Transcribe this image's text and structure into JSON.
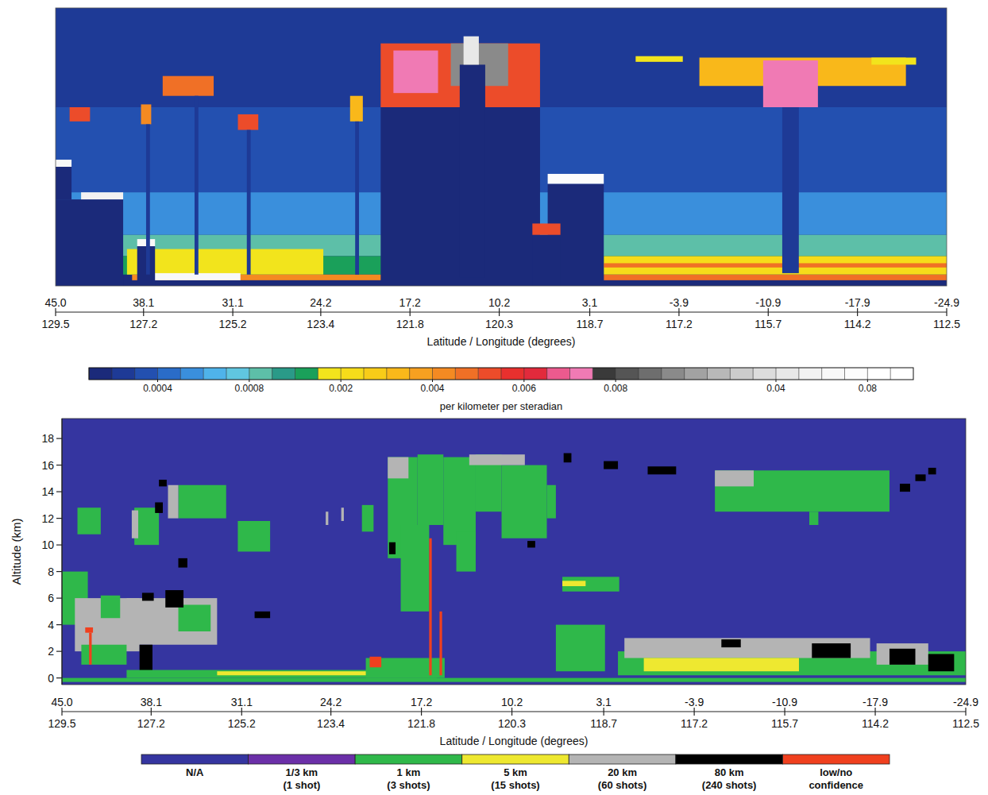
{
  "chart_data": [
    {
      "type": "heatmap",
      "xlim": [
        45.0,
        -24.9
      ],
      "xticks": [
        {
          "value": 45.0,
          "label": "45.0"
        },
        38.1,
        31.1,
        24.2,
        17.2,
        10.2,
        3.1,
        -3.9,
        -10.9,
        -17.9,
        -24.9
      ],
      "lon_ticks": [
        129.5,
        127.2,
        125.2,
        123.4,
        121.8,
        120.3,
        118.7,
        117.2,
        115.7,
        114.2,
        112.5
      ],
      "xlabel": "Latitude / Longitude (degrees)",
      "ylim": [
        -0.6,
        19
      ],
      "tick_labels": "x",
      "cells": [
        [
          45.0,
          -24.9,
          12.0,
          19.0,
          0.00025
        ],
        [
          45.0,
          -24.9,
          6.0,
          12.0,
          0.00035
        ],
        [
          45.0,
          -24.9,
          3.0,
          6.0,
          0.00055
        ],
        [
          45.0,
          -24.9,
          1.5,
          3.0,
          0.00085
        ],
        [
          45.0,
          -24.9,
          0.2,
          1.5,
          0.0012
        ],
        [
          39.4,
          24.0,
          0.2,
          2.0,
          0.0018
        ],
        [
          2.0,
          -24.9,
          0.2,
          1.5,
          0.0022
        ],
        [
          45.0,
          -24.9,
          -0.6,
          -0.2,
          0.00015
        ],
        [
          39.0,
          2.0,
          -0.2,
          0.2,
          0.004
        ],
        [
          37.5,
          30.5,
          -0.2,
          0.3,
          0.06
        ],
        [
          2.0,
          -24.9,
          -0.2,
          0.2,
          0.0045
        ],
        [
          2.0,
          -24.9,
          0.7,
          1.0,
          0.0045
        ],
        [
          45.0,
          39.7,
          -0.6,
          5.5,
          0.00012
        ],
        [
          45.0,
          43.75,
          5.5,
          7.8,
          0.00012
        ],
        [
          45.0,
          43.75,
          7.8,
          8.3,
          0.06
        ],
        [
          43.0,
          39.7,
          5.5,
          6.0,
          0.05
        ],
        [
          38.6,
          37.2,
          -0.6,
          2.2,
          0.00012
        ],
        [
          38.6,
          37.2,
          2.2,
          2.7,
          0.06
        ],
        [
          43.9,
          42.3,
          11.0,
          12.0,
          0.005
        ],
        [
          38.3,
          37.5,
          10.8,
          12.2,
          0.004
        ],
        [
          36.6,
          32.6,
          12.8,
          14.2,
          0.0045
        ],
        [
          30.7,
          29.1,
          10.4,
          11.5,
          0.005
        ],
        [
          21.9,
          20.9,
          11.0,
          12.8,
          0.003
        ],
        [
          37.9,
          37.6,
          0.2,
          10.8,
          0.0002
        ],
        [
          34.1,
          33.8,
          0.2,
          12.8,
          0.0002
        ],
        [
          30.0,
          29.7,
          0.2,
          10.4,
          0.0002
        ],
        [
          21.5,
          21.2,
          0.2,
          11.0,
          0.0002
        ],
        [
          19.5,
          7.0,
          -0.6,
          12.0,
          0.00012
        ],
        [
          19.5,
          7.0,
          12.0,
          16.5,
          0.005
        ],
        [
          18.5,
          15.0,
          13.0,
          16.0,
          0.007
        ],
        [
          14.0,
          9.5,
          13.5,
          16.5,
          0.009
        ],
        [
          13.3,
          11.3,
          0.0,
          15.0,
          0.00012
        ],
        [
          13.0,
          11.8,
          15.0,
          17.0,
          0.04
        ],
        [
          6.4,
          2.0,
          -0.6,
          6.6,
          0.00012
        ],
        [
          6.4,
          2.0,
          6.6,
          7.3,
          0.07
        ],
        [
          7.6,
          5.4,
          -0.6,
          3.0,
          0.00015
        ],
        [
          7.6,
          5.4,
          3.0,
          3.8,
          0.005
        ],
        [
          -5.5,
          -21.7,
          13.5,
          15.5,
          0.003
        ],
        [
          -10.5,
          -14.8,
          12.0,
          15.3,
          0.007
        ],
        [
          -12.0,
          -13.3,
          0.3,
          12.0,
          0.0002
        ],
        [
          -0.5,
          -4.2,
          15.2,
          15.6,
          0.0015
        ],
        [
          -19.0,
          -22.5,
          15.0,
          15.5,
          0.0015
        ]
      ],
      "colorbar": {
        "bounds": [
          0.0001,
          0.0002,
          0.0003,
          0.0004,
          0.0005,
          0.0006,
          0.0007,
          0.0008,
          0.0009,
          0.001,
          0.0015,
          0.002,
          0.0025,
          0.003,
          0.0035,
          0.004,
          0.0045,
          0.005,
          0.0055,
          0.006,
          0.0065,
          0.007,
          0.0075,
          0.008,
          0.0085,
          0.009,
          0.0095,
          0.01,
          0.02,
          0.03,
          0.04,
          0.05,
          0.06,
          0.07,
          0.08,
          0.09,
          0.1
        ],
        "colors": [
          "#1b2a7a",
          "#1e3a96",
          "#2350b0",
          "#2a6cc8",
          "#3a8fdc",
          "#4fb3ea",
          "#60c6e0",
          "#5dbfa8",
          "#2a9a88",
          "#1aa05a",
          "#f2e41c",
          "#f6dc1a",
          "#f8cc18",
          "#f9b81a",
          "#f7a020",
          "#f48a22",
          "#f07026",
          "#ec4c2a",
          "#e8302e",
          "#e22a3c",
          "#ec5a8e",
          "#f07ab4",
          "#3a3a3a",
          "#555555",
          "#6e6e6e",
          "#8a8a8a",
          "#a2a2a2",
          "#b8b8b8",
          "#cccccc",
          "#dcdcdc",
          "#e8e8e8",
          "#f2f2f2",
          "#f8f8f8",
          "#fcfcfc",
          "#ffffff",
          "#ffffff"
        ],
        "ticks": [
          0.0004,
          0.0008,
          0.002,
          0.004,
          0.006,
          0.008,
          0.04,
          0.08
        ],
        "label": "per kilometer per steradian"
      }
    },
    {
      "type": "heatmap",
      "xlim": [
        45.0,
        -24.9
      ],
      "xticks": [
        {
          "value": 45.0,
          "label": "45.0"
        },
        38.1,
        31.1,
        24.2,
        17.2,
        10.2,
        3.1,
        -3.9,
        -10.9,
        -17.9,
        -24.9
      ],
      "lon_ticks": [
        129.5,
        127.2,
        125.2,
        123.4,
        121.8,
        120.3,
        118.7,
        117.2,
        115.7,
        114.2,
        112.5
      ],
      "xlabel": "Latitude / Longitude (degrees)",
      "ylabel": "Altitude (km)",
      "ylim": [
        -0.5,
        19.5
      ],
      "yticks": [
        0,
        2,
        4,
        6,
        8,
        10,
        12,
        14,
        16,
        18
      ],
      "classes": [
        {
          "name": "N/A",
          "color": "#3535a0"
        },
        {
          "name": "1/3 km",
          "detail": "(1 shot)",
          "color": "#6b2fa8"
        },
        {
          "name": "1 km",
          "detail": "(3 shots)",
          "color": "#2fb84a"
        },
        {
          "name": "5 km",
          "detail": "(15 shots)",
          "color": "#eee830"
        },
        {
          "name": "20 km",
          "detail": "(60 shots)",
          "color": "#b4b4b4"
        },
        {
          "name": "80 km",
          "detail": "(240 shots)",
          "color": "#000000"
        },
        {
          "name": "low/no",
          "detail": "confidence",
          "color": "#f0401e"
        }
      ],
      "cells": [
        [
          45.0,
          43.0,
          4.0,
          8.0,
          2
        ],
        [
          44.0,
          39.0,
          2.0,
          6.0,
          4
        ],
        [
          40.0,
          33.0,
          2.5,
          6.0,
          4
        ],
        [
          43.5,
          40.0,
          1.0,
          2.5,
          2
        ],
        [
          36.0,
          33.5,
          3.5,
          5.5,
          2
        ],
        [
          42.0,
          40.5,
          4.5,
          6.2,
          2
        ],
        [
          39.0,
          38.0,
          0.5,
          2.5,
          5
        ],
        [
          37.0,
          35.6,
          5.3,
          6.6,
          5
        ],
        [
          36.0,
          35.3,
          8.3,
          9.0,
          5
        ],
        [
          38.8,
          37.9,
          5.8,
          6.4,
          5
        ],
        [
          30.1,
          28.9,
          4.5,
          5.0,
          5
        ],
        [
          43.2,
          42.6,
          3.4,
          3.8,
          6
        ],
        [
          42.9,
          42.7,
          1.0,
          3.4,
          6
        ],
        [
          40.0,
          16.0,
          0.0,
          0.6,
          2
        ],
        [
          33.0,
          20.0,
          0.2,
          0.5,
          3
        ],
        [
          43.8,
          42.0,
          10.8,
          12.8,
          2
        ],
        [
          39.4,
          37.5,
          10.0,
          12.8,
          2
        ],
        [
          39.6,
          39.1,
          10.5,
          12.6,
          4
        ],
        [
          37.8,
          37.2,
          12.4,
          13.2,
          5
        ],
        [
          37.5,
          36.9,
          14.4,
          14.9,
          5
        ],
        [
          36.0,
          32.3,
          12.0,
          14.5,
          2
        ],
        [
          36.8,
          36.0,
          12.0,
          14.5,
          4
        ],
        [
          31.4,
          28.9,
          9.5,
          11.8,
          2
        ],
        [
          24.6,
          24.4,
          11.5,
          12.5,
          4
        ],
        [
          23.4,
          23.2,
          11.8,
          12.8,
          4
        ],
        [
          21.8,
          20.9,
          11.0,
          13.0,
          2
        ],
        [
          21.5,
          15.4,
          0.0,
          1.5,
          2
        ],
        [
          21.2,
          20.3,
          0.8,
          1.6,
          6
        ],
        [
          19.8,
          17.5,
          9.0,
          16.6,
          2
        ],
        [
          17.5,
          15.5,
          11.5,
          16.8,
          2
        ],
        [
          15.5,
          13.0,
          10.0,
          16.6,
          2
        ],
        [
          13.0,
          11.0,
          12.5,
          16.8,
          2
        ],
        [
          11.0,
          7.5,
          10.5,
          16.0,
          2
        ],
        [
          7.5,
          6.8,
          12.0,
          14.5,
          2
        ],
        [
          18.8,
          16.6,
          5.0,
          11.5,
          2
        ],
        [
          14.5,
          13.0,
          8.0,
          11.0,
          2
        ],
        [
          19.8,
          18.2,
          15.0,
          16.6,
          4
        ],
        [
          13.5,
          9.2,
          16.0,
          16.8,
          4
        ],
        [
          19.7,
          19.2,
          9.3,
          10.2,
          5
        ],
        [
          9.0,
          8.4,
          9.8,
          10.3,
          5
        ],
        [
          16.6,
          16.4,
          0.2,
          10.5,
          6
        ],
        [
          15.8,
          15.6,
          0.2,
          5.0,
          6
        ],
        [
          6.2,
          5.6,
          16.2,
          16.9,
          5
        ],
        [
          6.3,
          1.9,
          6.5,
          7.6,
          2
        ],
        [
          6.3,
          4.5,
          6.9,
          7.3,
          3
        ],
        [
          6.8,
          3.0,
          0.5,
          4.0,
          2
        ],
        [
          3.1,
          2.0,
          15.7,
          16.3,
          5
        ],
        [
          -0.3,
          -2.5,
          15.3,
          15.9,
          5
        ],
        [
          -5.5,
          -19.0,
          12.5,
          15.6,
          2
        ],
        [
          -5.5,
          -8.5,
          14.4,
          15.6,
          4
        ],
        [
          -12.8,
          -13.5,
          11.5,
          12.5,
          2
        ],
        [
          -19.8,
          -20.6,
          14.0,
          14.6,
          5
        ],
        [
          -21.0,
          -21.8,
          14.8,
          15.3,
          5
        ],
        [
          -22.0,
          -22.6,
          15.3,
          15.8,
          5
        ],
        [
          2.0,
          -24.9,
          0.2,
          2.0,
          2
        ],
        [
          1.5,
          -17.5,
          1.5,
          3.0,
          4
        ],
        [
          0.0,
          -12.0,
          0.5,
          1.5,
          3
        ],
        [
          -18.0,
          -22.0,
          1.0,
          2.6,
          4
        ],
        [
          -13.0,
          -16.0,
          1.5,
          2.6,
          5
        ],
        [
          -19.0,
          -21.0,
          1.0,
          2.2,
          5
        ],
        [
          -22.0,
          -24.0,
          0.5,
          1.8,
          5
        ],
        [
          -6.0,
          -7.5,
          2.3,
          2.9,
          5
        ],
        [
          45.0,
          -24.9,
          -0.3,
          0.0,
          2
        ]
      ]
    }
  ]
}
